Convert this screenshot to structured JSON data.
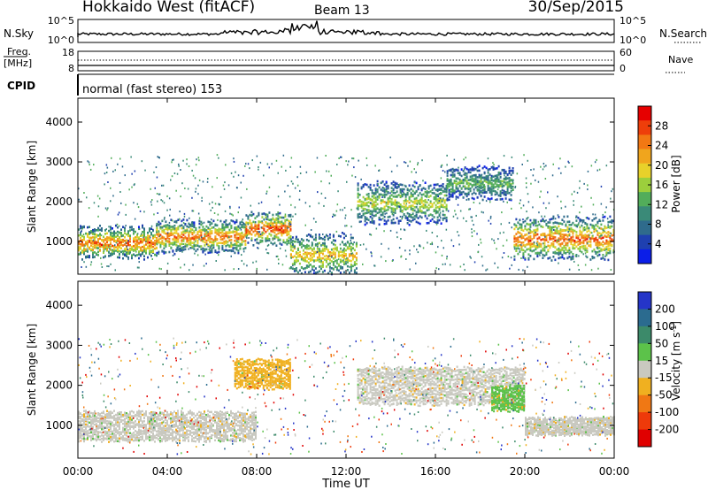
{
  "header": {
    "station": "Hokkaido West (fitACF)",
    "beam": "Beam 13",
    "date": "30/Sep/2015"
  },
  "sky_panel": {
    "left_label": "N.Sky",
    "left_ticks": [
      "10^5",
      "10^0"
    ],
    "right_ticks": [
      "10^5",
      "10^0"
    ],
    "right_label": "N.Search"
  },
  "freq_panel": {
    "left_label_1": "Freq.",
    "left_label_2": "[MHz]",
    "left_ticks": [
      "18",
      "8"
    ],
    "right_ticks": [
      "60",
      "0"
    ],
    "right_label": "Nave"
  },
  "cpid": {
    "label": "CPID",
    "mode": "normal (fast stereo) 153"
  },
  "chart_data": [
    {
      "type": "heatmap",
      "name": "power",
      "ylabel": "Slant Range [km]",
      "y_ticks": [
        "1000",
        "2000",
        "3000",
        "4000"
      ],
      "ylim": [
        180,
        4600
      ],
      "colorbar": {
        "label": "Power [dB]",
        "ticks": [
          "4",
          "8",
          "12",
          "16",
          "20",
          "24",
          "28"
        ],
        "range": [
          0,
          32
        ],
        "colors": [
          "#0b1ee8",
          "#1f40b0",
          "#2f6b8c",
          "#3a8a78",
          "#52ad5a",
          "#9ccf3c",
          "#e8d12a",
          "#f0a51d",
          "#f27813",
          "#ee3e0a",
          "#e60000"
        ]
      },
      "bands": [
        {
          "t": [
            0.0,
            3.5
          ],
          "center_km": 1000,
          "width_km": 300,
          "power_db": 28
        },
        {
          "t": [
            3.5,
            7.5
          ],
          "center_km": 1150,
          "width_km": 300,
          "power_db": 27
        },
        {
          "t": [
            7.5,
            9.5
          ],
          "center_km": 1350,
          "width_km": 300,
          "power_db": 30
        },
        {
          "t": [
            9.5,
            12.5
          ],
          "center_km": 700,
          "width_km": 400,
          "power_db": 22
        },
        {
          "t": [
            12.5,
            16.5
          ],
          "center_km": 2000,
          "width_km": 400,
          "power_db": 18
        },
        {
          "t": [
            16.5,
            19.5
          ],
          "center_km": 2500,
          "width_km": 300,
          "power_db": 14
        },
        {
          "t": [
            19.5,
            24.0
          ],
          "center_km": 1100,
          "width_km": 400,
          "power_db": 28
        }
      ]
    },
    {
      "type": "heatmap",
      "name": "velocity",
      "ylabel": "Slant Range [km]",
      "y_ticks": [
        "1000",
        "2000",
        "3000",
        "4000"
      ],
      "ylim": [
        180,
        4600
      ],
      "colorbar": {
        "label": "Velocity [m s",
        "label_sup": "-1",
        "label_end": "]",
        "ticks": [
          "200",
          "100",
          "50",
          "15",
          "-15",
          "-50",
          "-100",
          "-200"
        ],
        "colors": [
          "#2535c8",
          "#2b6b8f",
          "#3c8a6a",
          "#5cc24a",
          "#c9c9c0",
          "#f0b020",
          "#f07814",
          "#ee3a0a",
          "#e00000"
        ]
      },
      "regions": [
        {
          "t": [
            0.0,
            8.0
          ],
          "center_km": 1000,
          "width_km": 700,
          "class": "-15..15"
        },
        {
          "t": [
            7.0,
            9.5
          ],
          "center_km": 2300,
          "width_km": 700,
          "class": "-50"
        },
        {
          "t": [
            12.5,
            20.0
          ],
          "center_km": 2000,
          "width_km": 900,
          "class": "-15..15"
        },
        {
          "t": [
            18.5,
            20.0
          ],
          "center_km": 1700,
          "width_km": 600,
          "class": "50"
        },
        {
          "t": [
            20.0,
            24.0
          ],
          "center_km": 1000,
          "width_km": 400,
          "class": "-15..15"
        }
      ]
    }
  ],
  "x_axis": {
    "ticks": [
      "00:00",
      "04:00",
      "08:00",
      "12:00",
      "16:00",
      "20:00",
      "00:00"
    ],
    "label": "Time UT"
  }
}
